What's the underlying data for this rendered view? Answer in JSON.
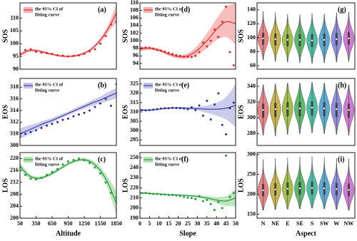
{
  "chart_data": [
    {
      "type": "scatter",
      "panel_label": "(a)",
      "y_label": "SOS",
      "legend": [
        "the 95% CI of",
        "fitting curve"
      ],
      "point_color": "#e0262a",
      "line_color": "#d62728",
      "band_color": "#f7b3b3",
      "xlim": [
        50,
        1850
      ],
      "ylim": [
        90,
        116
      ],
      "yticks": [
        90,
        95,
        100,
        105,
        110
      ],
      "points": {
        "x": [
          50,
          150,
          250,
          350,
          450,
          550,
          650,
          750,
          850,
          950,
          1050,
          1150,
          1250,
          1350,
          1450,
          1550,
          1650,
          1750,
          1850
        ],
        "y": [
          96.2,
          97.5,
          97.8,
          96.8,
          96.5,
          96.3,
          96.0,
          95.5,
          95.3,
          95.0,
          95.2,
          95.4,
          96.0,
          97.0,
          97.8,
          100.0,
          103.0,
          107.5,
          108.5
        ]
      },
      "fit": {
        "x": [
          50,
          200,
          350,
          500,
          650,
          800,
          950,
          1100,
          1250,
          1400,
          1550,
          1700,
          1850
        ],
        "values": [
          95.6,
          97.2,
          97.3,
          96.6,
          95.8,
          95.2,
          95.0,
          95.3,
          96.3,
          98.2,
          101.4,
          106.0,
          112.0
        ],
        "upper": [
          96.3,
          97.8,
          97.8,
          97.1,
          96.2,
          95.6,
          95.4,
          95.7,
          96.8,
          98.8,
          102.3,
          107.5,
          115.5
        ],
        "lower": [
          94.9,
          96.6,
          96.8,
          96.1,
          95.4,
          94.8,
          94.6,
          94.9,
          95.8,
          97.6,
          100.5,
          104.5,
          108.5
        ]
      }
    },
    {
      "type": "scatter",
      "panel_label": "(b)",
      "y_label": "EOS",
      "legend": [
        "the 95% CI of",
        "fitting curve"
      ],
      "point_color": "#2b2b9c",
      "line_color": "#3434a8",
      "band_color": "#c2c2e6",
      "xlim": [
        50,
        1850
      ],
      "ylim": [
        308,
        319.5
      ],
      "yticks": [
        308,
        310,
        312,
        314,
        316,
        318
      ],
      "points": {
        "x": [
          50,
          150,
          250,
          350,
          450,
          550,
          650,
          750,
          850,
          950,
          1050,
          1150,
          1250,
          1350,
          1450,
          1550,
          1650,
          1750,
          1850
        ],
        "y": [
          309.6,
          310.0,
          310.3,
          310.6,
          311.0,
          311.4,
          311.7,
          312.0,
          312.4,
          312.6,
          313.0,
          313.3,
          313.6,
          314.0,
          314.6,
          315.2,
          316.0,
          314.8,
          318.5
        ]
      },
      "fit": {
        "x": [
          50,
          200,
          350,
          500,
          650,
          800,
          950,
          1100,
          1250,
          1400,
          1550,
          1700,
          1850
        ],
        "values": [
          310.0,
          310.6,
          311.2,
          311.8,
          312.3,
          312.9,
          313.5,
          314.1,
          314.7,
          315.3,
          315.8,
          316.4,
          317.0
        ],
        "upper": [
          310.9,
          311.4,
          311.8,
          312.3,
          312.7,
          313.3,
          313.8,
          314.5,
          315.1,
          315.8,
          316.4,
          317.2,
          317.9
        ],
        "lower": [
          309.1,
          309.8,
          310.6,
          311.3,
          311.9,
          312.6,
          313.2,
          313.8,
          314.3,
          314.8,
          315.2,
          315.6,
          316.1
        ]
      }
    },
    {
      "type": "scatter",
      "panel_label": "(c)",
      "y_label": "LOS",
      "x_label": "Altitude",
      "legend": [
        "the 95% CI of",
        "fitting curve"
      ],
      "point_color": "#1f9a3a",
      "line_color": "#1f8f35",
      "band_color": "#b3e2b3",
      "xlim": [
        50,
        1850
      ],
      "xticks": [
        50,
        350,
        650,
        950,
        1250,
        1550,
        1850
      ],
      "ylim": [
        200,
        222
      ],
      "yticks": [
        200,
        204,
        208,
        212,
        216,
        220
      ],
      "points": {
        "x": [
          50,
          150,
          250,
          350,
          450,
          550,
          650,
          750,
          850,
          950,
          1050,
          1150,
          1250,
          1350,
          1450,
          1550,
          1650,
          1750,
          1850
        ],
        "y": [
          217.0,
          214.5,
          213.2,
          213.0,
          213.5,
          214.5,
          215.5,
          216.5,
          218.0,
          219.0,
          219.5,
          220.0,
          219.5,
          218.5,
          217.0,
          215.0,
          212.0,
          208.5,
          207.0
        ]
      },
      "fit": {
        "x": [
          50,
          200,
          350,
          500,
          650,
          800,
          950,
          1100,
          1250,
          1400,
          1550,
          1700,
          1850
        ],
        "values": [
          217.5,
          214.5,
          213.4,
          213.8,
          215.0,
          216.6,
          218.2,
          219.3,
          219.6,
          218.6,
          216.0,
          211.5,
          205.0
        ],
        "upper": [
          218.7,
          215.3,
          214.0,
          214.3,
          215.5,
          217.1,
          218.7,
          219.8,
          220.2,
          219.4,
          217.2,
          213.5,
          209.0
        ],
        "lower": [
          216.3,
          213.7,
          212.8,
          213.3,
          214.5,
          216.1,
          217.7,
          218.8,
          219.0,
          217.8,
          214.8,
          209.5,
          201.0
        ]
      }
    },
    {
      "type": "scatter",
      "panel_label": "(d)",
      "y_label": "SOS",
      "legend": [
        "the 95% CI of",
        "fitting curve"
      ],
      "point_color": "#e0262a",
      "line_color": "#d62728",
      "band_color": "#f7b3b3",
      "xlim": [
        0,
        50
      ],
      "ylim": [
        92.5,
        110
      ],
      "yticks": [
        94,
        96,
        98,
        100,
        102,
        104,
        106,
        108,
        110
      ],
      "points": {
        "x": [
          1,
          3,
          5,
          7,
          9,
          11,
          13,
          15,
          17,
          19,
          21,
          23,
          25,
          27,
          29,
          31,
          33,
          35,
          37,
          39,
          41,
          43,
          45,
          47,
          49
        ],
        "y": [
          98.0,
          98.2,
          98.1,
          97.9,
          97.6,
          97.4,
          97.1,
          96.8,
          96.5,
          96.2,
          96.0,
          95.8,
          95.8,
          95.7,
          96.0,
          97.0,
          99.5,
          98.5,
          100.0,
          103.0,
          101.0,
          105.0,
          109.0,
          97.0,
          93.5
        ]
      },
      "fit": {
        "x": [
          0,
          5,
          10,
          15,
          20,
          25,
          30,
          35,
          40,
          45,
          50
        ],
        "values": [
          97.8,
          98.0,
          97.5,
          96.5,
          95.8,
          96.0,
          97.5,
          100.0,
          103.0,
          105.0,
          104.5
        ],
        "upper": [
          98.5,
          98.4,
          97.9,
          96.9,
          96.3,
          96.7,
          98.7,
          102.0,
          105.8,
          109.0,
          109.8
        ],
        "lower": [
          97.1,
          97.6,
          97.1,
          96.1,
          95.3,
          95.3,
          96.3,
          98.0,
          100.2,
          101.0,
          99.0
        ]
      }
    },
    {
      "type": "scatter",
      "panel_label": "(e)",
      "y_label": "EOS",
      "legend": [
        "the 95% CI of",
        "fitting curve"
      ],
      "point_color": "#2b2b9c",
      "line_color": "#3434a8",
      "band_color": "#c2c2e6",
      "xlim": [
        0,
        50
      ],
      "ylim": [
        292,
        328
      ],
      "yticks": [
        295,
        300,
        305,
        310,
        315,
        320,
        325
      ],
      "points": {
        "x": [
          1,
          3,
          5,
          7,
          9,
          11,
          13,
          15,
          17,
          19,
          21,
          23,
          25,
          27,
          29,
          31,
          33,
          35,
          37,
          39,
          41,
          43,
          45,
          47,
          49
        ],
        "y": [
          311.0,
          310.8,
          311.0,
          311.2,
          311.5,
          311.8,
          312.0,
          312.0,
          312.2,
          312.1,
          312.0,
          311.8,
          311.5,
          312.5,
          311.0,
          313.5,
          308.0,
          316.0,
          306.0,
          314.0,
          320.0,
          303.0,
          298.0,
          312.0,
          315.0
        ]
      },
      "fit": {
        "x": [
          0,
          5,
          10,
          15,
          20,
          25,
          30,
          35,
          40,
          45,
          50
        ],
        "values": [
          311.0,
          311.0,
          311.5,
          312.0,
          312.2,
          312.0,
          311.8,
          311.5,
          311.5,
          312.0,
          313.5
        ],
        "upper": [
          311.6,
          311.4,
          311.9,
          312.4,
          312.7,
          312.6,
          312.8,
          313.5,
          315.0,
          318.0,
          325.0
        ],
        "lower": [
          310.4,
          310.6,
          311.1,
          311.6,
          311.7,
          311.4,
          310.8,
          309.5,
          308.0,
          306.0,
          302.0
        ]
      }
    },
    {
      "type": "scatter",
      "panel_label": "(f)",
      "y_label": "LOS",
      "x_label": "Slope",
      "legend": [
        "the 95% CI of",
        "fitting curve"
      ],
      "point_color": "#1f9a3a",
      "line_color": "#1f8f35",
      "band_color": "#b3e2b3",
      "xlim": [
        0,
        50
      ],
      "xticks": [
        0,
        5,
        10,
        15,
        20,
        25,
        30,
        35,
        40,
        45,
        50
      ],
      "ylim": [
        190,
        255
      ],
      "yticks": [
        190,
        200,
        210,
        220,
        230,
        240,
        250
      ],
      "points": {
        "x": [
          1,
          3,
          5,
          7,
          9,
          11,
          13,
          15,
          17,
          19,
          21,
          23,
          25,
          27,
          29,
          31,
          33,
          35,
          37,
          39,
          41,
          43,
          45,
          47,
          49
        ],
        "y": [
          215.0,
          215.0,
          214.5,
          214.0,
          214.0,
          213.5,
          213.5,
          213.0,
          213.0,
          212.5,
          212.0,
          211.0,
          210.5,
          210.0,
          209.0,
          212.0,
          207.0,
          208.0,
          204.0,
          198.0,
          206.0,
          200.0,
          252.0,
          211.0,
          215.0
        ]
      },
      "fit": {
        "x": [
          0,
          5,
          10,
          15,
          20,
          25,
          30,
          35,
          40,
          45,
          50
        ],
        "values": [
          215.0,
          214.5,
          214.0,
          213.5,
          213.0,
          212.5,
          211.5,
          210.0,
          208.0,
          207.0,
          210.0
        ],
        "upper": [
          215.8,
          215.1,
          214.5,
          214.0,
          213.6,
          213.3,
          212.8,
          212.0,
          211.0,
          212.0,
          218.0
        ],
        "lower": [
          214.2,
          213.9,
          213.5,
          213.0,
          212.4,
          211.7,
          210.2,
          208.0,
          205.0,
          202.0,
          202.0
        ]
      }
    },
    {
      "type": "violin",
      "panel_label": "(g)",
      "y_label": "SOS",
      "colors": [
        "#e8838a",
        "#c9b54c",
        "#a3c24c",
        "#5cb86e",
        "#4dbfa6",
        "#5aaad2",
        "#8e8ede",
        "#d07ad2"
      ],
      "ylim": [
        55,
        150
      ],
      "yticks": [
        60,
        80,
        100,
        120,
        140
      ],
      "boxes": [
        [
          68,
          90,
          99,
          107,
          138
        ],
        [
          66,
          89,
          98,
          106,
          136
        ],
        [
          65,
          88,
          97,
          105,
          134
        ],
        [
          64,
          88,
          97,
          105,
          133
        ],
        [
          63,
          87,
          96,
          105,
          135
        ],
        [
          64,
          88,
          97,
          106,
          134
        ],
        [
          65,
          89,
          98,
          107,
          136
        ],
        [
          66,
          90,
          99,
          108,
          137
        ]
      ]
    },
    {
      "type": "violin",
      "panel_label": "(h)",
      "y_label": "EOS",
      "colors": [
        "#e8838a",
        "#c9b54c",
        "#a3c24c",
        "#5cb86e",
        "#4dbfa6",
        "#5aaad2",
        "#8e8ede",
        "#d07ad2"
      ],
      "ylim": [
        265,
        350
      ],
      "yticks": [
        280,
        300,
        320,
        340
      ],
      "boxes": [
        [
          278,
          300,
          310,
          318,
          342
        ],
        [
          277,
          301,
          311,
          319,
          343
        ],
        [
          279,
          302,
          312,
          320,
          344
        ],
        [
          280,
          302,
          312,
          320,
          344
        ],
        [
          281,
          303,
          313,
          321,
          345
        ],
        [
          280,
          302,
          312,
          320,
          344
        ],
        [
          279,
          301,
          311,
          319,
          343
        ],
        [
          278,
          300,
          310,
          318,
          342
        ]
      ]
    },
    {
      "type": "violin",
      "panel_label": "(i)",
      "y_label": "LOS",
      "x_label": "Aspect",
      "categories": [
        "N",
        "NE",
        "E",
        "SE",
        "S",
        "SW",
        "W",
        "NW"
      ],
      "colors": [
        "#e8838a",
        "#c9b54c",
        "#a3c24c",
        "#5cb86e",
        "#4dbfa6",
        "#5aaad2",
        "#8e8ede",
        "#d07ad2"
      ],
      "ylim": [
        140,
        305
      ],
      "yticks": [
        150,
        200,
        250,
        300
      ],
      "boxes": [
        [
          160,
          195,
          210,
          226,
          288
        ],
        [
          162,
          197,
          212,
          228,
          290
        ],
        [
          163,
          198,
          214,
          230,
          292
        ],
        [
          164,
          199,
          215,
          231,
          294
        ],
        [
          165,
          200,
          216,
          232,
          295
        ],
        [
          164,
          199,
          215,
          231,
          293
        ],
        [
          162,
          197,
          213,
          229,
          291
        ],
        [
          160,
          195,
          211,
          227,
          289
        ]
      ]
    }
  ]
}
